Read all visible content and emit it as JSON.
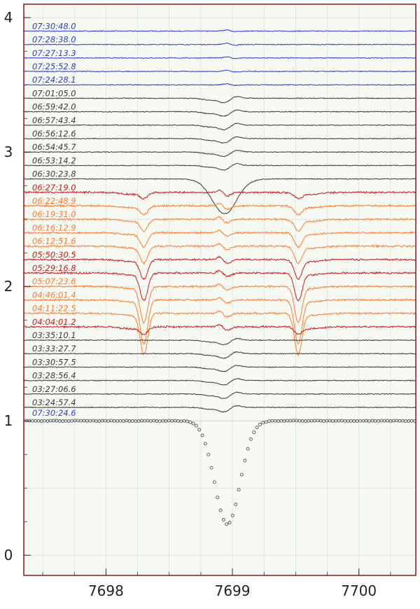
{
  "chart_data": {
    "type": "line",
    "title": "",
    "xlabel": "",
    "ylabel": "",
    "xlim": [
      7697.35,
      7700.45
    ],
    "ylim": [
      -0.15,
      4.1
    ],
    "x_ticks": [
      7698,
      7699,
      7700
    ],
    "y_ticks": [
      0,
      1,
      2,
      3,
      4
    ],
    "grid": true,
    "colors": {
      "background": "#f7f9f3",
      "frame": "#8b1a1a",
      "grid": "#d8ddd6",
      "black": "#3a3a3a",
      "blue": "#2a3fd0",
      "red": "#cc1a1a",
      "orange": "#ff7a2a",
      "reference_points": "#555555"
    },
    "reference": {
      "name": "07:30:24.6",
      "label_color": "#2a3fd0",
      "baseline": 1.0,
      "line_center": 7698.96,
      "line_depth": 0.77,
      "line_width": 0.1
    },
    "series": [
      {
        "name": "07:30:48.0",
        "color": "blue",
        "offset": 3.9,
        "feature": "flat"
      },
      {
        "name": "07:28:38.0",
        "color": "blue",
        "offset": 3.8,
        "feature": "flat"
      },
      {
        "name": "07:27:13.3",
        "color": "blue",
        "offset": 3.7,
        "feature": "flat"
      },
      {
        "name": "07:25:52.8",
        "color": "blue",
        "offset": 3.6,
        "feature": "flat"
      },
      {
        "name": "07:24:28.1",
        "color": "blue",
        "offset": 3.5,
        "feature": "flat"
      },
      {
        "name": "07:01:05.0",
        "color": "black",
        "offset": 3.4,
        "feature": "weak"
      },
      {
        "name": "06:59:42.0",
        "color": "black",
        "offset": 3.3,
        "feature": "weak"
      },
      {
        "name": "06:57:43.4",
        "color": "black",
        "offset": 3.2,
        "feature": "weak"
      },
      {
        "name": "06:56:12.6",
        "color": "black",
        "offset": 3.1,
        "feature": "weak"
      },
      {
        "name": "06:54:45.7",
        "color": "black",
        "offset": 3.0,
        "feature": "weak"
      },
      {
        "name": "06:53:14.2",
        "color": "black",
        "offset": 2.9,
        "feature": "weak"
      },
      {
        "name": "06:30:23.8",
        "color": "black",
        "offset": 2.8,
        "feature": "deep"
      },
      {
        "name": "06:27:19.0",
        "color": "red",
        "offset": 2.7,
        "feature": "transit",
        "depth": 0.04
      },
      {
        "name": "06:22:48.9",
        "color": "orange",
        "offset": 2.6,
        "feature": "transit",
        "depth": 0.06
      },
      {
        "name": "06:19:31.0",
        "color": "orange",
        "offset": 2.5,
        "feature": "transit",
        "depth": 0.08
      },
      {
        "name": "06:16:12.9",
        "color": "orange",
        "offset": 2.4,
        "feature": "transit",
        "depth": 0.1
      },
      {
        "name": "06:12:51.6",
        "color": "orange",
        "offset": 2.3,
        "feature": "transit",
        "depth": 0.12
      },
      {
        "name": "05:50:30.5",
        "color": "red",
        "offset": 2.2,
        "feature": "transit",
        "depth": 0.14
      },
      {
        "name": "05:29:16.8",
        "color": "red",
        "offset": 2.1,
        "feature": "transit",
        "depth": 0.2
      },
      {
        "name": "05:07:23.6",
        "color": "orange",
        "offset": 2.0,
        "feature": "transit",
        "depth": 0.26
      },
      {
        "name": "04:46:01.4",
        "color": "orange",
        "offset": 1.9,
        "feature": "transit",
        "depth": 0.32
      },
      {
        "name": "04:11:22.5",
        "color": "orange",
        "offset": 1.8,
        "feature": "transit",
        "depth": 0.3
      },
      {
        "name": "04:04:01.2",
        "color": "red",
        "offset": 1.7,
        "feature": "transit",
        "depth": 0.05
      },
      {
        "name": "03:35:10.1",
        "color": "black",
        "offset": 1.6,
        "feature": "weak"
      },
      {
        "name": "03:33:27.7",
        "color": "black",
        "offset": 1.5,
        "feature": "weak"
      },
      {
        "name": "03:30:57.5",
        "color": "black",
        "offset": 1.4,
        "feature": "weak"
      },
      {
        "name": "03:28:56.4",
        "color": "black",
        "offset": 1.3,
        "feature": "weak"
      },
      {
        "name": "03:27:06.6",
        "color": "black",
        "offset": 1.2,
        "feature": "weak"
      },
      {
        "name": "03:24:57.4",
        "color": "black",
        "offset": 1.1,
        "feature": "weak"
      }
    ],
    "side_features": [
      7698.3,
      7699.52
    ]
  }
}
